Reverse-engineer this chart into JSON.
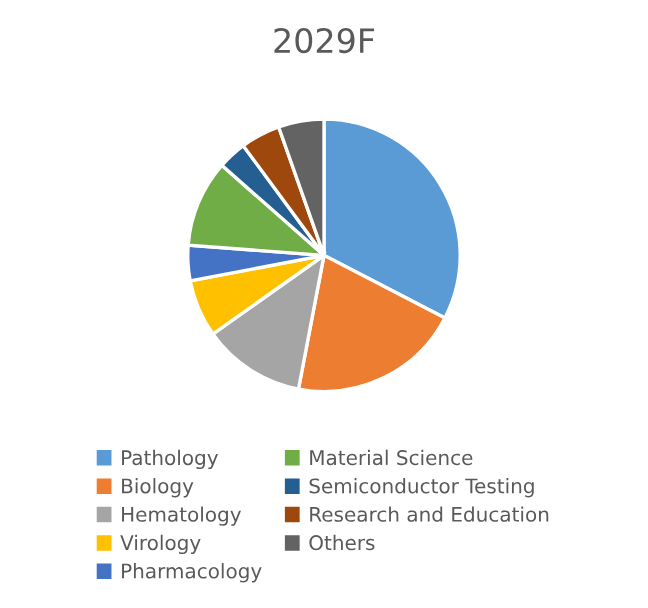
{
  "chart_data": {
    "type": "pie",
    "title": "2029F",
    "categories": [
      "Pathology",
      "Biology",
      "Hematology",
      "Virology",
      "Pharmacology",
      "Material Science",
      "Semiconductor Testing",
      "Research and Education",
      "Others"
    ],
    "values": [
      32.6,
      20.4,
      12.2,
      6.8,
      4.2,
      10.3,
      3.4,
      4.7,
      5.4
    ],
    "colors": [
      "#5b9bd5",
      "#ed7d31",
      "#a5a5a5",
      "#ffc000",
      "#4472c4",
      "#70ad47",
      "#255e91",
      "#9e480e",
      "#636363"
    ],
    "legend": "bottom"
  }
}
